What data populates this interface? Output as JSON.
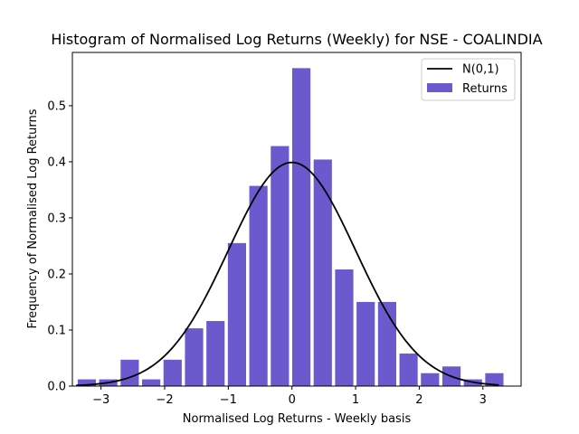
{
  "chart_data": {
    "type": "bar",
    "title": "Histogram of Normalised Log Returns (Weekly) for NSE - COALINDIA",
    "xlabel": "Normalised Log Returns - Weekly basis",
    "ylabel": "Frequency of Normalised Log Returns",
    "xlim": [
      -3.45,
      3.6
    ],
    "ylim": [
      0,
      0.595
    ],
    "xticks": [
      -3,
      -2,
      -1,
      0,
      1,
      2,
      3
    ],
    "xtick_labels": [
      "−3",
      "−2",
      "−1",
      "0",
      "1",
      "2",
      "3"
    ],
    "yticks": [
      0.0,
      0.1,
      0.2,
      0.3,
      0.4,
      0.5
    ],
    "ytick_labels": [
      "0.0",
      "0.1",
      "0.2",
      "0.3",
      "0.4",
      "0.5"
    ],
    "grid": false,
    "legend_position": "top-right",
    "bar_color": "#6a5acd",
    "line_color": "#000000",
    "series": [
      {
        "name": "Returns",
        "kind": "bar",
        "bin_width": 0.337,
        "bin_centers": [
          -3.223,
          -2.886,
          -2.549,
          -2.212,
          -1.875,
          -1.538,
          -1.201,
          -0.864,
          -0.527,
          -0.19,
          0.147,
          0.484,
          0.821,
          1.158,
          1.495,
          1.832,
          2.169,
          2.506,
          2.843,
          3.18
        ],
        "values": [
          0.012,
          0.012,
          0.047,
          0.012,
          0.047,
          0.103,
          0.116,
          0.255,
          0.357,
          0.428,
          0.567,
          0.404,
          0.208,
          0.15,
          0.15,
          0.058,
          0.023,
          0.035,
          0.012,
          0.023
        ]
      },
      {
        "name": "N(0,1)",
        "kind": "line",
        "x_range": [
          -3.39,
          3.25
        ]
      }
    ]
  }
}
